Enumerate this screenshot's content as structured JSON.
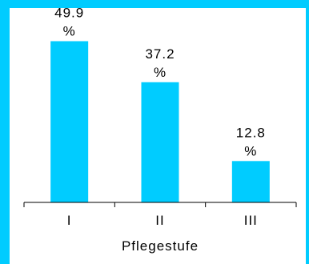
{
  "chart_data": {
    "type": "bar",
    "categories": [
      "I",
      "II",
      "III"
    ],
    "values": [
      49.9,
      37.2,
      12.8
    ],
    "data_labels": [
      {
        "value": "49.9",
        "unit": "%"
      },
      {
        "value": "37.2",
        "unit": "%"
      },
      {
        "value": "12.8",
        "unit": "%"
      }
    ],
    "xlabel": "Pflegestufe",
    "ylabel": "",
    "title": "",
    "ylim": [
      0,
      52
    ],
    "grid": false,
    "legend": "none",
    "bar_color": "#00ccff",
    "background_color": "#00ccff",
    "plot_background": "#ffffff"
  }
}
